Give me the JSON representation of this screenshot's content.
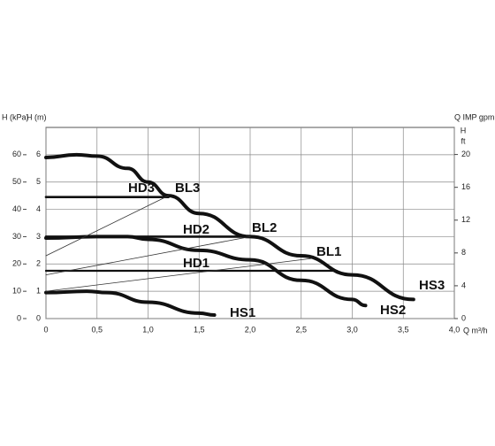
{
  "chart_data": {
    "type": "line",
    "y_kpa_title": "H (kPa)",
    "y_title": "H (m)",
    "y2_title_top": "Q IMP gpm",
    "y2_title": "H",
    "y2_unit": "ft",
    "x_title": "Q m³/h",
    "xlim": [
      0,
      4
    ],
    "ylim": [
      0,
      7
    ],
    "y_kpa_lim": [
      0,
      70
    ],
    "y2lim": [
      0,
      23.3
    ],
    "xticks": [
      0,
      {
        "value": 0.5,
        "label": "0,5"
      },
      {
        "value": 1,
        "label": "1,0"
      },
      {
        "value": 1.5,
        "label": "1,5"
      },
      {
        "value": 2,
        "label": "2,0"
      },
      {
        "value": 2.5,
        "label": "2,5"
      },
      {
        "value": 3,
        "label": "3,0"
      },
      {
        "value": 3.5,
        "label": "3,5"
      },
      {
        "value": 4,
        "label": "4,0"
      }
    ],
    "yticks": [
      0,
      1,
      2,
      3,
      4,
      5,
      6
    ],
    "y_kpa_ticks": [
      0,
      10,
      20,
      30,
      40,
      50,
      60
    ],
    "y2ticks": [
      0,
      4,
      8,
      12,
      16,
      20
    ],
    "grid": true,
    "series": [
      {
        "name": "HS3",
        "color": "#111111",
        "x": [
          0,
          0.3,
          0.5,
          0.8,
          1.0,
          1.2,
          1.5,
          2.0,
          2.5,
          3.0,
          3.6
        ],
        "values": [
          5.9,
          6.0,
          5.95,
          5.5,
          5.0,
          4.5,
          3.85,
          3.0,
          2.3,
          1.6,
          0.7
        ]
      },
      {
        "name": "HS2",
        "color": "#111111",
        "x": [
          0,
          0.5,
          0.8,
          1.0,
          1.5,
          2.0,
          2.5,
          3.0,
          3.13
        ],
        "values": [
          2.95,
          3.0,
          3.0,
          2.9,
          2.5,
          2.15,
          1.4,
          0.7,
          0.48
        ]
      },
      {
        "name": "HS1",
        "color": "#111111",
        "x": [
          0,
          0.4,
          0.6,
          1.0,
          1.5,
          1.65
        ],
        "values": [
          0.95,
          1.0,
          0.95,
          0.6,
          0.2,
          0.13
        ]
      },
      {
        "name": "HD3",
        "color": "#111111",
        "x": [
          0,
          1.2
        ],
        "values": [
          4.45,
          4.45
        ]
      },
      {
        "name": "HD2",
        "color": "#111111",
        "x": [
          0,
          2.0
        ],
        "values": [
          3.0,
          3.0
        ]
      },
      {
        "name": "HD1",
        "color": "#111111",
        "x": [
          0,
          2.85
        ],
        "values": [
          1.75,
          1.75
        ]
      },
      {
        "name": "BL3",
        "color": "#333333",
        "x": [
          0,
          1.2
        ],
        "values": [
          2.3,
          4.5
        ]
      },
      {
        "name": "BL2",
        "color": "#333333",
        "x": [
          0,
          2.0
        ],
        "values": [
          1.6,
          3.0
        ]
      },
      {
        "name": "BL1",
        "color": "#333333",
        "x": [
          0,
          2.6
        ],
        "values": [
          1.0,
          2.2
        ]
      }
    ]
  }
}
